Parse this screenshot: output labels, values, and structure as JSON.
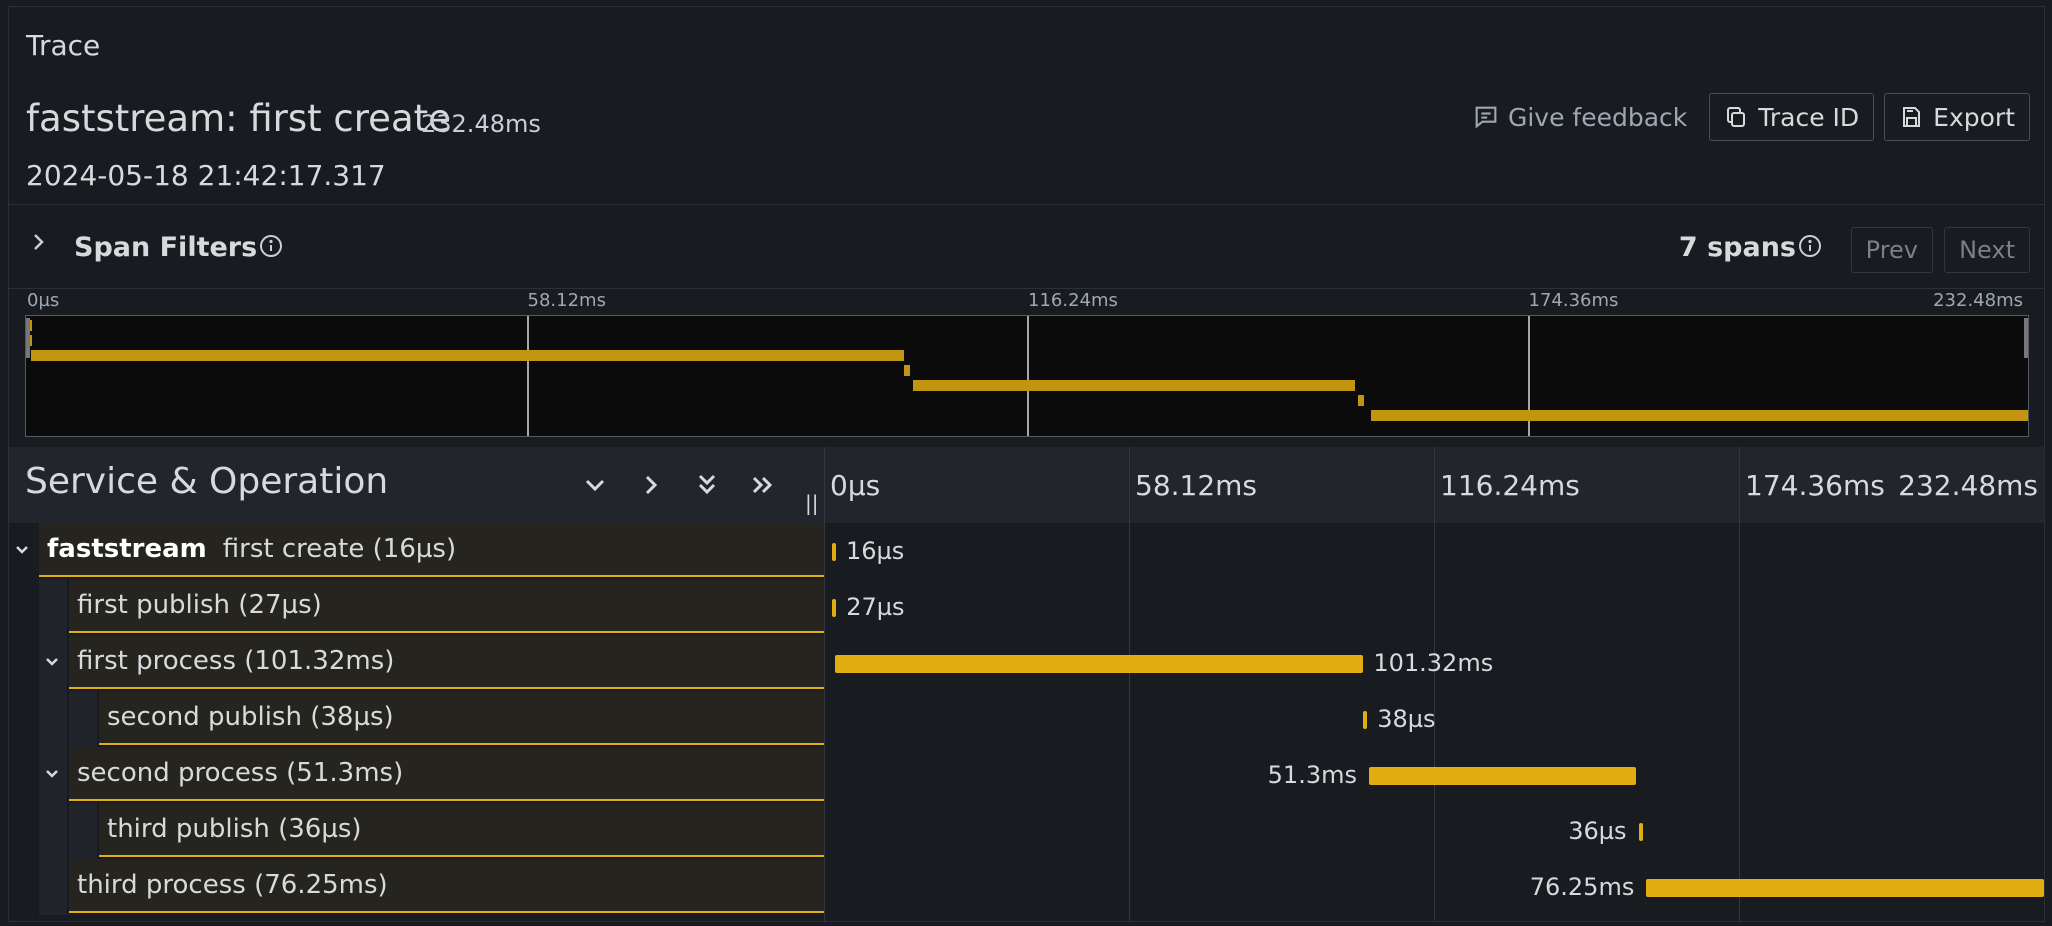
{
  "panel": {
    "title": "Trace"
  },
  "trace": {
    "name": "faststream: first create",
    "duration": "232.48ms",
    "start_time": "2024-05-18 21:42:17.317"
  },
  "header_actions": {
    "feedback_label": "Give feedback",
    "trace_id_label": "Trace ID",
    "export_label": "Export"
  },
  "span_filters": {
    "label": "Span Filters",
    "span_count": "7 spans",
    "prev_label": "Prev",
    "next_label": "Next"
  },
  "ticks": [
    "0µs",
    "58.12ms",
    "116.24ms",
    "174.36ms",
    "232.48ms"
  ],
  "timeline": {
    "column_title": "Service & Operation",
    "total_ms": 232.48
  },
  "spans": [
    {
      "depth": 0,
      "service": "faststream",
      "name": "first create (16µs)",
      "label": "16µs",
      "start_ms": 0,
      "dur_ms": 0.016,
      "has_children": true,
      "label_side": "right"
    },
    {
      "depth": 1,
      "service": "",
      "name": "first publish (27µs)",
      "label": "27µs",
      "start_ms": 0.05,
      "dur_ms": 0.027,
      "has_children": false,
      "label_side": "right"
    },
    {
      "depth": 1,
      "service": "",
      "name": "first process (101.32ms)",
      "label": "101.32ms",
      "start_ms": 0.6,
      "dur_ms": 101.32,
      "has_children": true,
      "label_side": "right"
    },
    {
      "depth": 2,
      "service": "",
      "name": "second publish (38µs)",
      "label": "38µs",
      "start_ms": 101.9,
      "dur_ms": 0.038,
      "has_children": false,
      "label_side": "right"
    },
    {
      "depth": 1,
      "service": "",
      "name": "second process (51.3ms)",
      "label": "51.3ms",
      "start_ms": 103.0,
      "dur_ms": 51.3,
      "has_children": true,
      "label_side": "left"
    },
    {
      "depth": 2,
      "service": "",
      "name": "third publish (36µs)",
      "label": "36µs",
      "start_ms": 154.7,
      "dur_ms": 0.036,
      "has_children": false,
      "label_side": "left"
    },
    {
      "depth": 1,
      "service": "",
      "name": "third process (76.25ms)",
      "label": "76.25ms",
      "start_ms": 156.2,
      "dur_ms": 76.25,
      "has_children": false,
      "label_side": "left"
    }
  ],
  "colors": {
    "span_bar": "#e2ad11",
    "minimap_bar": "#c29510",
    "background": "#181b1f"
  },
  "icons": {
    "feedback": "comment-icon",
    "trace_id": "copy-icon",
    "export": "save-icon",
    "info": "info-circle-icon"
  }
}
